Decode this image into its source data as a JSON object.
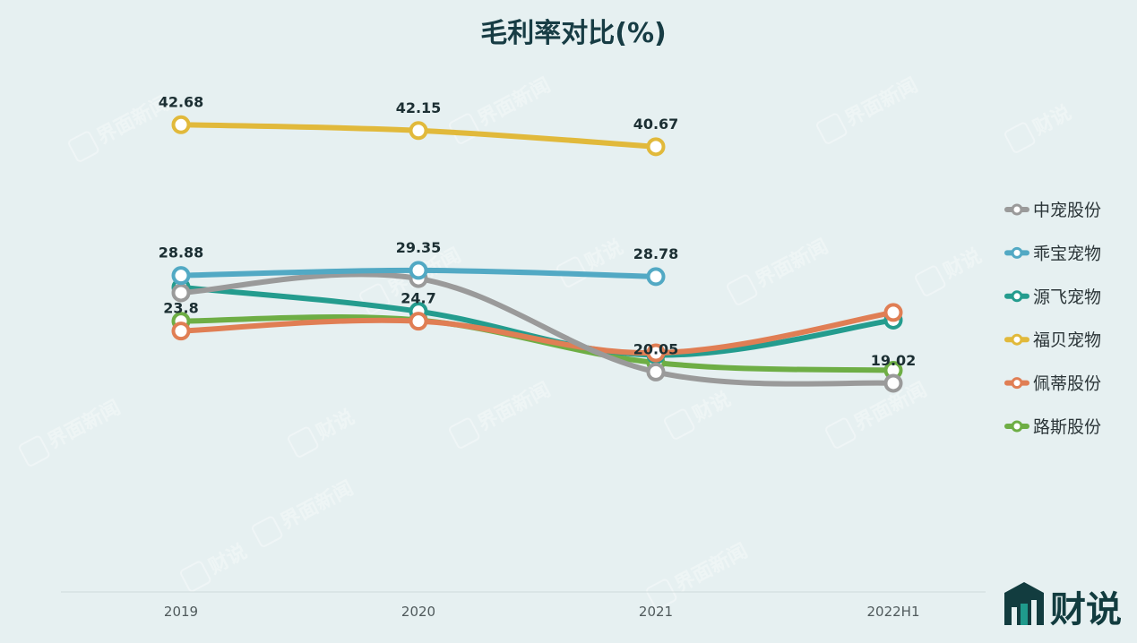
{
  "chart_data": {
    "type": "line",
    "title": "毛利率对比(%)",
    "categories": [
      "2019",
      "2020",
      "2021",
      "2022H1"
    ],
    "ylim": [
      0,
      50
    ],
    "grid": false,
    "legend_position": "right",
    "series": [
      {
        "name": "中宠股份",
        "color": "#9a9a9a",
        "values": [
          27.3,
          28.6,
          20.05,
          19.02
        ],
        "labels": [
          "",
          "",
          "20.05",
          "19.02"
        ]
      },
      {
        "name": "乖宝宠物",
        "color": "#52a9c4",
        "values": [
          28.88,
          29.35,
          28.78,
          null
        ],
        "labels": [
          "28.88",
          "29.35",
          "28.78",
          ""
        ]
      },
      {
        "name": "源飞宠物",
        "color": "#249c8e",
        "values": [
          27.8,
          25.6,
          21.6,
          24.8
        ],
        "labels": [
          "",
          "",
          "",
          ""
        ]
      },
      {
        "name": "福贝宠物",
        "color": "#e1b93b",
        "values": [
          42.68,
          42.15,
          40.67,
          null
        ],
        "labels": [
          "42.68",
          "42.15",
          "40.67",
          ""
        ]
      },
      {
        "name": "佩蒂股份",
        "color": "#e07e54",
        "values": [
          23.8,
          24.7,
          21.8,
          25.5
        ],
        "labels": [
          "23.8",
          "24.7",
          "",
          ""
        ]
      },
      {
        "name": "路斯股份",
        "color": "#6eae45",
        "values": [
          24.7,
          24.8,
          20.9,
          20.2
        ],
        "labels": [
          "",
          "",
          "",
          ""
        ]
      }
    ]
  },
  "watermark": {
    "text1": "界面新闻",
    "text2": "财说"
  },
  "brand": {
    "name": "财说",
    "color": "#123c3f",
    "accent": "#1f9a8c"
  }
}
